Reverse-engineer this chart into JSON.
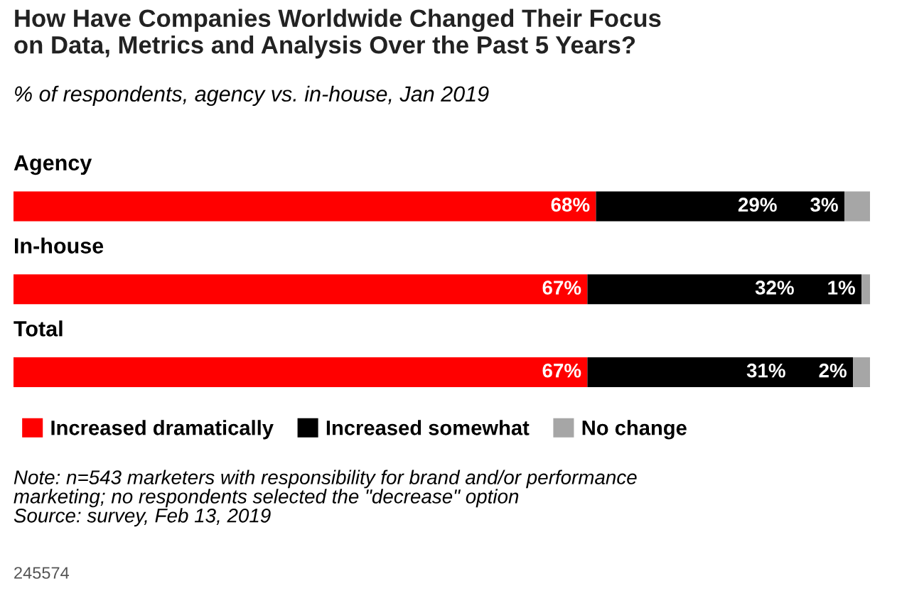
{
  "chart_data": {
    "type": "bar",
    "orientation": "horizontal",
    "stacked": true,
    "title": "How Have Companies Worldwide Changed Their Focus\non Data, Metrics and Analysis Over the Past 5 Years?",
    "subtitle": "% of respondents, agency vs. in-house, Jan 2019",
    "categories": [
      "Agency",
      "In-house",
      "Total"
    ],
    "series": [
      {
        "name": "Increased dramatically",
        "color": "#ff0000",
        "values": [
          68,
          67,
          67
        ],
        "value_labels": [
          "68%",
          "67%",
          "67%"
        ]
      },
      {
        "name": "Increased somewhat",
        "color": "#000000",
        "values": [
          29,
          32,
          31
        ],
        "value_labels": [
          "29%",
          "32%",
          "31%"
        ]
      },
      {
        "name": "No change",
        "color": "#a6a6a6",
        "values": [
          3,
          1,
          2
        ],
        "value_labels": [
          "3%",
          "1%",
          "2%"
        ]
      }
    ],
    "legend": "bottom",
    "annotations": [
      "Note: n=543 marketers with responsibility for brand and/or performance\nmarketing; no respondents selected the \"decrease\" option\nSource: survey, Feb 13, 2019",
      "245574"
    ]
  }
}
